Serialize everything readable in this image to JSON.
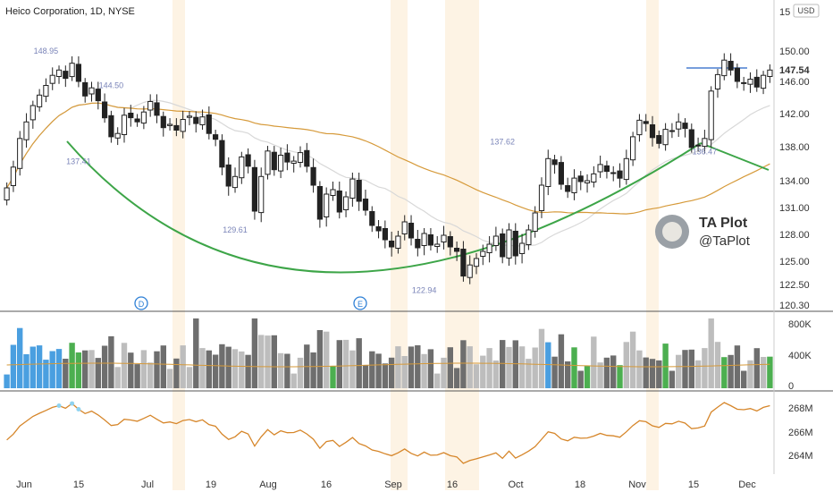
{
  "header": {
    "title": "Heico Corporation, 1D, NYSE",
    "currency": "USD"
  },
  "watermark": {
    "title": "TA Plot",
    "handle": "@TaPlot"
  },
  "price_marker": "147.54",
  "events": [
    "D",
    "E"
  ],
  "chart_data": [
    {
      "type": "candlestick",
      "title": "Heico Corporation, 1D, NYSE",
      "y_axis_labels": [
        "150.00",
        "147.54",
        "146.00",
        "142.00",
        "138.00",
        "134.00",
        "131.00",
        "128.00",
        "125.00",
        "122.50",
        "120.30"
      ],
      "x_axis_labels": [
        "Jun",
        "15",
        "Jul",
        "19",
        "Aug",
        "16",
        "Sep",
        "16",
        "Oct",
        "18",
        "Nov",
        "15",
        "Dec"
      ],
      "ylim": [
        120.3,
        151.0
      ],
      "annotations": [
        {
          "text": "148.95",
          "x": "Jun 9",
          "y": 148.95
        },
        {
          "text": "144.50",
          "x": "Jun 24",
          "y": 144.5
        },
        {
          "text": "137.41",
          "x": "Jun 16",
          "y": 137.41
        },
        {
          "text": "129.61",
          "x": "Jul 21",
          "y": 129.61
        },
        {
          "text": "122.94",
          "x": "Sep 3",
          "y": 122.94
        },
        {
          "text": "137.62",
          "x": "Sep 20",
          "y": 137.62
        },
        {
          "text": "136.47",
          "x": "Nov 4",
          "y": 136.47
        }
      ],
      "close": [
        133.2,
        135.6,
        139.0,
        141.0,
        143.0,
        144.3,
        145.5,
        146.8,
        147.5,
        146.4,
        148.4,
        146.0,
        144.2,
        145.2,
        143.6,
        141.5,
        139.2,
        139.6,
        141.8,
        141.5,
        141.0,
        142.2,
        143.5,
        141.8,
        140.3,
        140.7,
        140.0,
        141.3,
        141.7,
        140.8,
        141.6,
        139.6,
        138.9,
        135.6,
        133.4,
        134.5,
        136.8,
        135.7,
        130.6,
        134.5,
        137.5,
        135.3,
        137.0,
        136.2,
        136.3,
        137.3,
        135.7,
        133.5,
        129.7,
        132.5,
        133.0,
        130.5,
        132.2,
        134.2,
        131.7,
        130.7,
        129.0,
        128.4,
        127.4,
        126.6,
        127.8,
        129.4,
        127.6,
        126.5,
        128.1,
        126.8,
        126.9,
        127.9,
        126.6,
        126.1,
        123.4,
        124.6,
        125.3,
        126.1,
        126.9,
        127.8,
        125.5,
        128.5,
        125.6,
        127.0,
        128.5,
        130.4,
        133.5,
        136.6,
        135.9,
        133.6,
        132.8,
        134.3,
        133.9,
        134.0,
        134.8,
        135.9,
        135.1,
        134.9,
        134.3,
        136.6,
        139.2,
        141.2,
        140.8,
        139.1,
        138.4,
        140.1,
        139.9,
        141.0,
        140.2,
        137.9,
        138.2,
        139.0,
        144.8,
        146.9,
        148.8,
        147.5,
        146.0,
        145.8,
        146.3,
        145.3,
        146.8,
        147.5
      ],
      "volume_axis_labels": [
        "800K",
        "400K",
        "0"
      ],
      "indicator_axis_labels": [
        "268M",
        "266M",
        "264M"
      ]
    }
  ]
}
